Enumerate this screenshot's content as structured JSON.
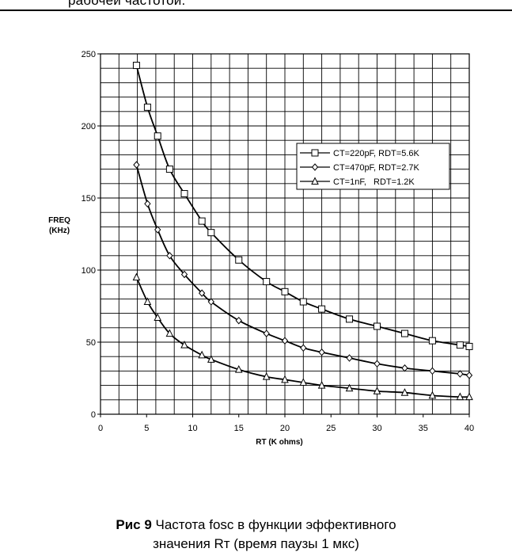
{
  "header": {
    "text": "рабочей частотой."
  },
  "caption": {
    "lead": "Рис 9",
    "line1": " Частота fosc в функции эффективного",
    "line2": "значения Rт (время паузы 1 мкс)"
  },
  "chart_data": {
    "type": "line",
    "title": "",
    "xlabel": "RT (K ohms)",
    "ylabel_lines": [
      "FREQ",
      "(KHz)"
    ],
    "xlim": [
      0,
      40
    ],
    "ylim": [
      0,
      250
    ],
    "x_ticks": [
      0,
      5,
      10,
      15,
      20,
      25,
      30,
      35,
      40
    ],
    "y_ticks": [
      0,
      50,
      100,
      150,
      200,
      250
    ],
    "grid": true,
    "legend_position": "upper-right",
    "series": [
      {
        "name": "CT=220pF, RDT=5.6K",
        "marker": "square",
        "x": [
          3.9,
          5.1,
          6.2,
          7.5,
          9.1,
          11,
          12,
          15,
          18,
          20,
          22,
          24,
          27,
          30,
          33,
          36,
          39,
          40
        ],
        "y": [
          242,
          213,
          193,
          170,
          153,
          134,
          126,
          107,
          92,
          85,
          78,
          73,
          66,
          61,
          56,
          51,
          48,
          47
        ]
      },
      {
        "name": "CT=470pF, RDT=2.7K",
        "marker": "diamond",
        "x": [
          3.9,
          5.1,
          6.2,
          7.5,
          9.1,
          11,
          12,
          15,
          18,
          20,
          22,
          24,
          27,
          30,
          33,
          36,
          39,
          40
        ],
        "y": [
          173,
          146,
          128,
          110,
          97,
          84,
          78,
          65,
          56,
          51,
          46,
          43,
          39,
          35,
          32,
          30,
          28,
          27
        ]
      },
      {
        "name": "CT=1nF,   RDT=1.2K",
        "marker": "triangle",
        "x": [
          3.9,
          5.1,
          6.2,
          7.5,
          9.1,
          11,
          12,
          15,
          18,
          20,
          22,
          24,
          27,
          30,
          33,
          36,
          39,
          40
        ],
        "y": [
          95,
          78,
          67,
          56,
          48,
          41,
          38,
          31,
          26,
          24,
          22,
          20,
          18,
          16,
          15,
          13,
          12,
          12
        ]
      }
    ]
  }
}
